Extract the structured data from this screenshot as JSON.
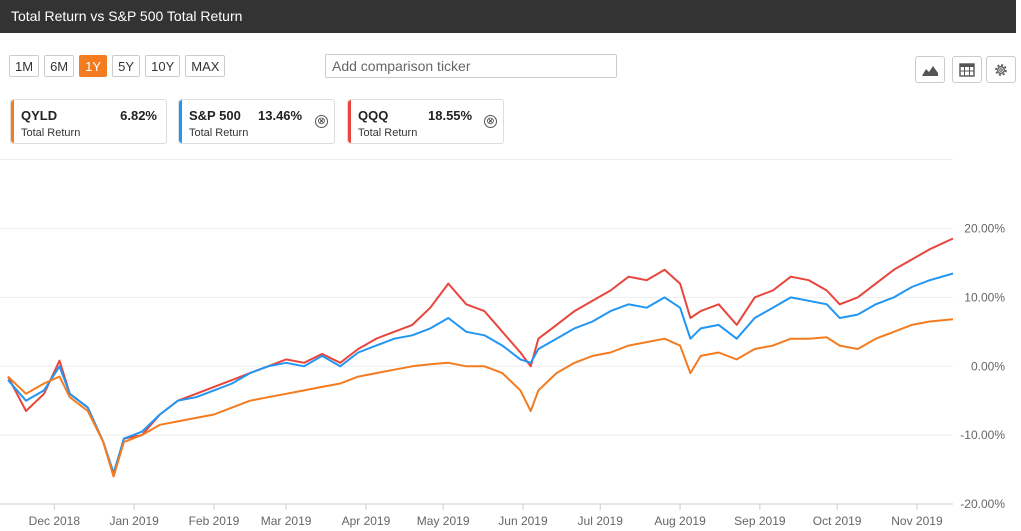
{
  "header": {
    "title": "Total Return vs S&P 500 Total Return"
  },
  "range_buttons": [
    {
      "label": "1M",
      "active": false
    },
    {
      "label": "6M",
      "active": false
    },
    {
      "label": "1Y",
      "active": true
    },
    {
      "label": "5Y",
      "active": false
    },
    {
      "label": "10Y",
      "active": false
    },
    {
      "label": "MAX",
      "active": false
    }
  ],
  "comparison": {
    "placeholder": "Add comparison ticker"
  },
  "toolbar": {
    "icons": [
      "area-chart-icon",
      "table-icon",
      "gear-icon"
    ]
  },
  "cards": [
    {
      "symbol": "QYLD",
      "value": "6.82%",
      "sub": "Total Return",
      "color": "#f47c20",
      "removable": false
    },
    {
      "symbol": "S&P 500",
      "value": "13.46%",
      "sub": "Total Return",
      "color": "#2196f3",
      "removable": true,
      "remove": "⊗"
    },
    {
      "symbol": "QQQ",
      "value": "18.55%",
      "sub": "Total Return",
      "color": "#e8453c",
      "removable": true,
      "remove": "⊗"
    }
  ],
  "chart_data": {
    "type": "line",
    "ylim": [
      -20,
      20
    ],
    "y_ticks": [
      "20.00%",
      "10.00%",
      "0.00%",
      "-10.00%",
      "-20.00%"
    ],
    "y_tick_values": [
      20,
      10,
      0,
      -10,
      -20
    ],
    "x_tick_labels": [
      "Dec 2018",
      "Jan 2019",
      "Feb 2019",
      "Mar 2019",
      "Apr 2019",
      "May 2019",
      "Jun 2019",
      "Jul 2019",
      "Aug 2019",
      "Sep 2019",
      "Oct 2019",
      "Nov 2019"
    ],
    "x_tick_dates": [
      "2018-12-01",
      "2019-01-01",
      "2019-02-01",
      "2019-03-01",
      "2019-04-01",
      "2019-05-01",
      "2019-06-01",
      "2019-07-01",
      "2019-08-01",
      "2019-09-01",
      "2019-10-01",
      "2019-11-01"
    ],
    "x_start": "2018-11-13",
    "x_end": "2019-11-15",
    "series": [
      {
        "name": "QQQ",
        "color": "#e8453c",
        "points": [
          [
            "2018-11-13",
            -1.5
          ],
          [
            "2018-11-20",
            -6.5
          ],
          [
            "2018-11-27",
            -4
          ],
          [
            "2018-12-03",
            0.8
          ],
          [
            "2018-12-07",
            -4
          ],
          [
            "2018-12-14",
            -6
          ],
          [
            "2018-12-20",
            -11
          ],
          [
            "2018-12-24",
            -16
          ],
          [
            "2018-12-28",
            -10.5
          ],
          [
            "2019-01-04",
            -10
          ],
          [
            "2019-01-11",
            -7
          ],
          [
            "2019-01-18",
            -5
          ],
          [
            "2019-01-25",
            -4
          ],
          [
            "2019-02-01",
            -3
          ],
          [
            "2019-02-08",
            -2
          ],
          [
            "2019-02-15",
            -1
          ],
          [
            "2019-02-22",
            0
          ],
          [
            "2019-03-01",
            1
          ],
          [
            "2019-03-08",
            0.5
          ],
          [
            "2019-03-15",
            1.8
          ],
          [
            "2019-03-22",
            0.5
          ],
          [
            "2019-03-29",
            2.5
          ],
          [
            "2019-04-05",
            4
          ],
          [
            "2019-04-12",
            5
          ],
          [
            "2019-04-19",
            6
          ],
          [
            "2019-04-26",
            8.5
          ],
          [
            "2019-05-03",
            12
          ],
          [
            "2019-05-10",
            9
          ],
          [
            "2019-05-17",
            8
          ],
          [
            "2019-05-24",
            5
          ],
          [
            "2019-05-31",
            2
          ],
          [
            "2019-06-04",
            0
          ],
          [
            "2019-06-07",
            4
          ],
          [
            "2019-06-14",
            6
          ],
          [
            "2019-06-21",
            8
          ],
          [
            "2019-06-28",
            9.5
          ],
          [
            "2019-07-05",
            11
          ],
          [
            "2019-07-12",
            13
          ],
          [
            "2019-07-19",
            12.5
          ],
          [
            "2019-07-26",
            14
          ],
          [
            "2019-08-01",
            12
          ],
          [
            "2019-08-05",
            7
          ],
          [
            "2019-08-09",
            8
          ],
          [
            "2019-08-16",
            9
          ],
          [
            "2019-08-23",
            6
          ],
          [
            "2019-08-30",
            10
          ],
          [
            "2019-09-06",
            11
          ],
          [
            "2019-09-13",
            13
          ],
          [
            "2019-09-20",
            12.5
          ],
          [
            "2019-09-27",
            11
          ],
          [
            "2019-10-02",
            9
          ],
          [
            "2019-10-09",
            10
          ],
          [
            "2019-10-16",
            12
          ],
          [
            "2019-10-23",
            14
          ],
          [
            "2019-10-30",
            15.5
          ],
          [
            "2019-11-06",
            17
          ],
          [
            "2019-11-15",
            18.55
          ]
        ]
      },
      {
        "name": "S&P 500",
        "color": "#2196f3",
        "points": [
          [
            "2018-11-13",
            -2
          ],
          [
            "2018-11-20",
            -5
          ],
          [
            "2018-11-27",
            -3.5
          ],
          [
            "2018-12-03",
            0
          ],
          [
            "2018-12-07",
            -4
          ],
          [
            "2018-12-14",
            -6
          ],
          [
            "2018-12-20",
            -11
          ],
          [
            "2018-12-24",
            -15.5
          ],
          [
            "2018-12-28",
            -10.5
          ],
          [
            "2019-01-04",
            -9.5
          ],
          [
            "2019-01-11",
            -7
          ],
          [
            "2019-01-18",
            -5
          ],
          [
            "2019-01-25",
            -4.5
          ],
          [
            "2019-02-01",
            -3.5
          ],
          [
            "2019-02-08",
            -2.5
          ],
          [
            "2019-02-15",
            -1
          ],
          [
            "2019-02-22",
            0
          ],
          [
            "2019-03-01",
            0.5
          ],
          [
            "2019-03-08",
            0
          ],
          [
            "2019-03-15",
            1.5
          ],
          [
            "2019-03-22",
            0
          ],
          [
            "2019-03-29",
            2
          ],
          [
            "2019-04-05",
            3
          ],
          [
            "2019-04-12",
            4
          ],
          [
            "2019-04-19",
            4.5
          ],
          [
            "2019-04-26",
            5.5
          ],
          [
            "2019-05-03",
            7
          ],
          [
            "2019-05-10",
            5
          ],
          [
            "2019-05-17",
            4.5
          ],
          [
            "2019-05-24",
            3
          ],
          [
            "2019-05-31",
            1
          ],
          [
            "2019-06-04",
            0.5
          ],
          [
            "2019-06-07",
            2.5
          ],
          [
            "2019-06-14",
            4
          ],
          [
            "2019-06-21",
            5.5
          ],
          [
            "2019-06-28",
            6.5
          ],
          [
            "2019-07-05",
            8
          ],
          [
            "2019-07-12",
            9
          ],
          [
            "2019-07-19",
            8.5
          ],
          [
            "2019-07-26",
            10
          ],
          [
            "2019-08-01",
            8.5
          ],
          [
            "2019-08-05",
            4
          ],
          [
            "2019-08-09",
            5.5
          ],
          [
            "2019-08-16",
            6
          ],
          [
            "2019-08-23",
            4
          ],
          [
            "2019-08-30",
            7
          ],
          [
            "2019-09-06",
            8.5
          ],
          [
            "2019-09-13",
            10
          ],
          [
            "2019-09-20",
            9.5
          ],
          [
            "2019-09-27",
            9
          ],
          [
            "2019-10-02",
            7
          ],
          [
            "2019-10-09",
            7.5
          ],
          [
            "2019-10-16",
            9
          ],
          [
            "2019-10-23",
            10
          ],
          [
            "2019-10-30",
            11.5
          ],
          [
            "2019-11-06",
            12.5
          ],
          [
            "2019-11-15",
            13.46
          ]
        ]
      },
      {
        "name": "QYLD",
        "color": "#f47c20",
        "points": [
          [
            "2018-11-13",
            -1.5
          ],
          [
            "2018-11-20",
            -4
          ],
          [
            "2018-11-27",
            -2.5
          ],
          [
            "2018-12-03",
            -1.5
          ],
          [
            "2018-12-07",
            -4.5
          ],
          [
            "2018-12-14",
            -6.5
          ],
          [
            "2018-12-20",
            -11
          ],
          [
            "2018-12-24",
            -16
          ],
          [
            "2018-12-28",
            -11
          ],
          [
            "2019-01-04",
            -10
          ],
          [
            "2019-01-11",
            -8.5
          ],
          [
            "2019-01-18",
            -8
          ],
          [
            "2019-01-25",
            -7.5
          ],
          [
            "2019-02-01",
            -7
          ],
          [
            "2019-02-08",
            -6
          ],
          [
            "2019-02-15",
            -5
          ],
          [
            "2019-02-22",
            -4.5
          ],
          [
            "2019-03-01",
            -4
          ],
          [
            "2019-03-08",
            -3.5
          ],
          [
            "2019-03-15",
            -3
          ],
          [
            "2019-03-22",
            -2.5
          ],
          [
            "2019-03-29",
            -1.5
          ],
          [
            "2019-04-05",
            -1
          ],
          [
            "2019-04-12",
            -0.5
          ],
          [
            "2019-04-19",
            0
          ],
          [
            "2019-04-26",
            0.3
          ],
          [
            "2019-05-03",
            0.5
          ],
          [
            "2019-05-10",
            0
          ],
          [
            "2019-05-17",
            0
          ],
          [
            "2019-05-24",
            -1
          ],
          [
            "2019-05-31",
            -3.5
          ],
          [
            "2019-06-04",
            -6.5
          ],
          [
            "2019-06-07",
            -3.5
          ],
          [
            "2019-06-14",
            -1
          ],
          [
            "2019-06-21",
            0.5
          ],
          [
            "2019-06-28",
            1.5
          ],
          [
            "2019-07-05",
            2
          ],
          [
            "2019-07-12",
            3
          ],
          [
            "2019-07-19",
            3.5
          ],
          [
            "2019-07-26",
            4
          ],
          [
            "2019-08-01",
            3
          ],
          [
            "2019-08-05",
            -1
          ],
          [
            "2019-08-09",
            1.5
          ],
          [
            "2019-08-16",
            2
          ],
          [
            "2019-08-23",
            1
          ],
          [
            "2019-08-30",
            2.5
          ],
          [
            "2019-09-06",
            3
          ],
          [
            "2019-09-13",
            4
          ],
          [
            "2019-09-20",
            4
          ],
          [
            "2019-09-27",
            4.2
          ],
          [
            "2019-10-02",
            3
          ],
          [
            "2019-10-09",
            2.5
          ],
          [
            "2019-10-16",
            4
          ],
          [
            "2019-10-23",
            5
          ],
          [
            "2019-10-30",
            6
          ],
          [
            "2019-11-06",
            6.5
          ],
          [
            "2019-11-15",
            6.82
          ]
        ]
      }
    ]
  }
}
